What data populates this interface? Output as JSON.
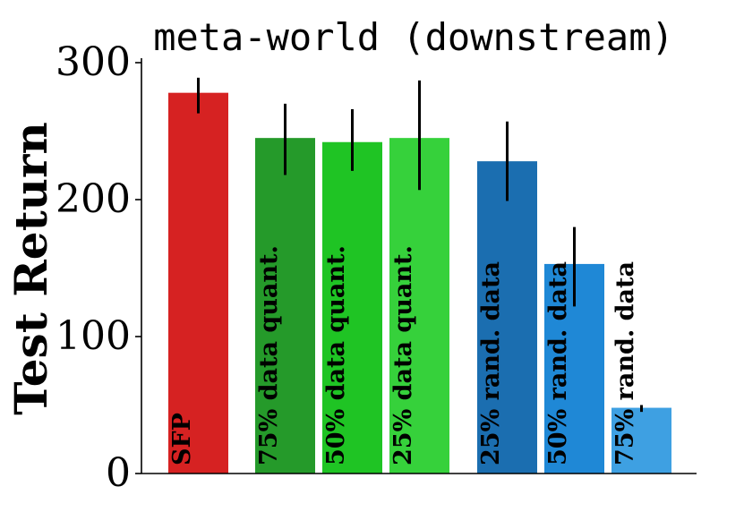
{
  "chart_data": {
    "type": "bar",
    "title": "meta-world (downstream)",
    "xlabel": "",
    "ylabel": "Test Return",
    "ylim": [
      0,
      300
    ],
    "yticks": [
      0,
      100,
      200,
      300
    ],
    "grid": false,
    "categories": [
      "SFP",
      "75% data quant.",
      "50% data quant.",
      "25% data quant.",
      "25% rand. data",
      "50% rand. data",
      "75% rand. data"
    ],
    "values": [
      278,
      245,
      242,
      245,
      228,
      153,
      48
    ],
    "error_low": [
      263,
      218,
      221,
      207,
      199,
      122,
      45
    ],
    "error_high": [
      289,
      270,
      266,
      287,
      257,
      180,
      50
    ],
    "colors": [
      "#d62222",
      "#259a2a",
      "#1fc424",
      "#36d13b",
      "#1b6eb0",
      "#1f88d6",
      "#3ea0e2"
    ]
  }
}
